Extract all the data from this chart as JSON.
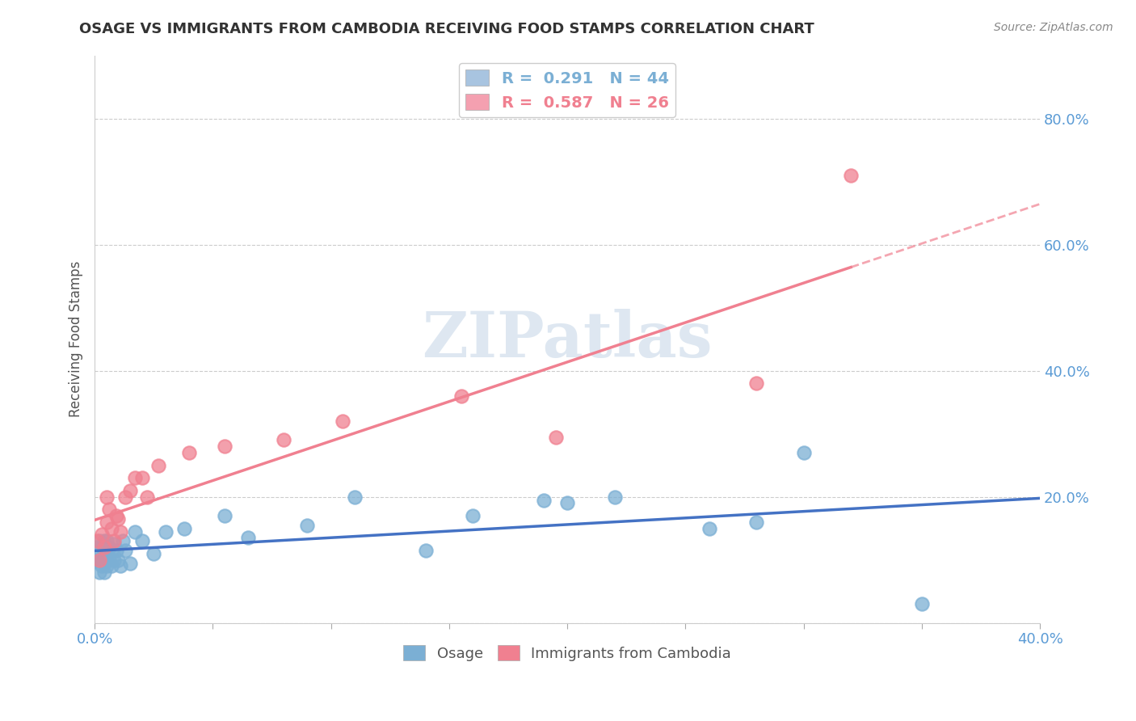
{
  "title": "OSAGE VS IMMIGRANTS FROM CAMBODIA RECEIVING FOOD STAMPS CORRELATION CHART",
  "source": "Source: ZipAtlas.com",
  "ylabel": "Receiving Food Stamps",
  "xlim": [
    0.0,
    0.4
  ],
  "ylim": [
    0.0,
    0.9
  ],
  "yticks": [
    0.0,
    0.2,
    0.4,
    0.6,
    0.8
  ],
  "y_tick_labels": [
    "",
    "20.0%",
    "40.0%",
    "60.0%",
    "80.0%"
  ],
  "legend1_label": "R =  0.291   N = 44",
  "legend2_label": "R =  0.587   N = 26",
  "legend1_color": "#a8c4e0",
  "legend2_color": "#f4a0b0",
  "watermark": "ZIPatlas",
  "osage_x": [
    0.001,
    0.001,
    0.002,
    0.002,
    0.002,
    0.003,
    0.003,
    0.003,
    0.004,
    0.004,
    0.004,
    0.005,
    0.005,
    0.005,
    0.006,
    0.006,
    0.007,
    0.007,
    0.008,
    0.008,
    0.009,
    0.01,
    0.011,
    0.012,
    0.013,
    0.015,
    0.017,
    0.02,
    0.025,
    0.03,
    0.038,
    0.055,
    0.065,
    0.09,
    0.11,
    0.14,
    0.16,
    0.19,
    0.2,
    0.22,
    0.26,
    0.28,
    0.3,
    0.35
  ],
  "osage_y": [
    0.1,
    0.12,
    0.08,
    0.1,
    0.13,
    0.09,
    0.1,
    0.12,
    0.08,
    0.1,
    0.13,
    0.09,
    0.11,
    0.13,
    0.1,
    0.12,
    0.09,
    0.115,
    0.1,
    0.125,
    0.115,
    0.1,
    0.09,
    0.13,
    0.115,
    0.095,
    0.145,
    0.13,
    0.11,
    0.145,
    0.15,
    0.17,
    0.135,
    0.155,
    0.2,
    0.115,
    0.17,
    0.195,
    0.19,
    0.2,
    0.15,
    0.16,
    0.27,
    0.03
  ],
  "cambodia_x": [
    0.001,
    0.002,
    0.003,
    0.004,
    0.005,
    0.005,
    0.006,
    0.007,
    0.008,
    0.009,
    0.01,
    0.011,
    0.013,
    0.015,
    0.017,
    0.02,
    0.022,
    0.027,
    0.04,
    0.055,
    0.08,
    0.105,
    0.155,
    0.195,
    0.28,
    0.32
  ],
  "cambodia_y": [
    0.13,
    0.1,
    0.14,
    0.12,
    0.16,
    0.2,
    0.18,
    0.15,
    0.13,
    0.17,
    0.165,
    0.145,
    0.2,
    0.21,
    0.23,
    0.23,
    0.2,
    0.25,
    0.27,
    0.28,
    0.29,
    0.32,
    0.36,
    0.295,
    0.38,
    0.71
  ],
  "osage_color": "#7bafd4",
  "cambodia_color": "#f08090",
  "line_osage_color": "#4472c4",
  "line_cambodia_color": "#f08090",
  "grid_color": "#cccccc",
  "background_color": "#ffffff",
  "title_color": "#333333",
  "tick_color": "#5b9bd5",
  "watermark_color": "#c8d8e8"
}
